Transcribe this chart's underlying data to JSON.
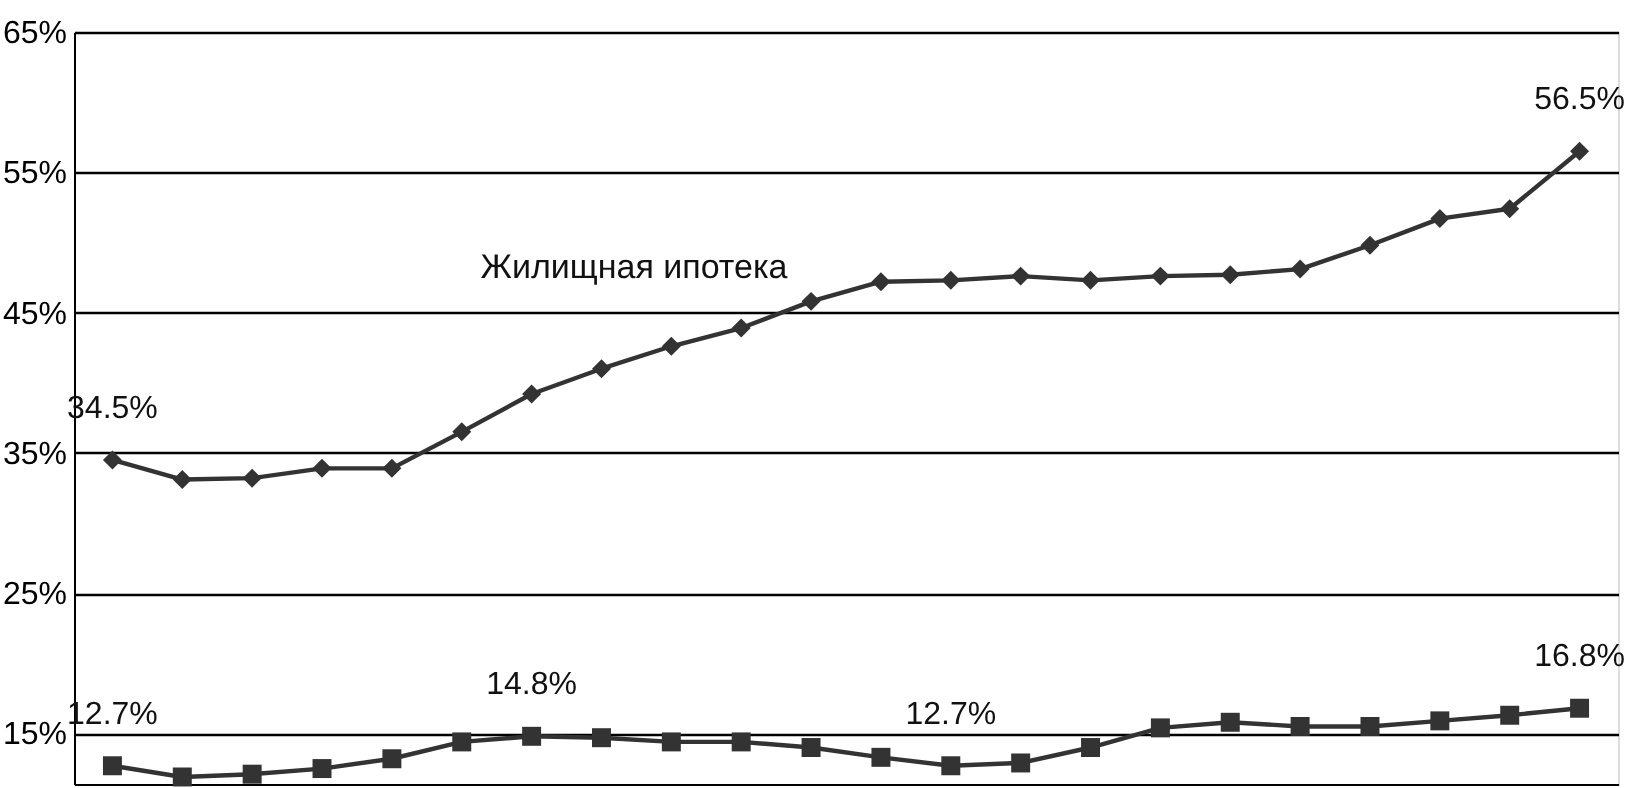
{
  "chart_data": {
    "type": "line",
    "categories": [
      null,
      null,
      null,
      null,
      null,
      null,
      null,
      null,
      null,
      null,
      null,
      null,
      null,
      null,
      null,
      null,
      null,
      null,
      null,
      null,
      null,
      null
    ],
    "series": [
      {
        "name": "Жилищная ипотека",
        "color": "#333333",
        "marker": "diamond",
        "values": [
          34.5,
          33.1,
          33.2,
          33.9,
          33.9,
          36.5,
          39.2,
          41.0,
          42.6,
          43.9,
          45.8,
          47.2,
          47.3,
          47.6,
          47.3,
          47.6,
          47.7,
          48.1,
          49.8,
          51.7,
          52.4,
          56.5
        ],
        "value_labels": [
          "34.5%",
          null,
          null,
          null,
          null,
          null,
          null,
          null,
          null,
          null,
          null,
          null,
          null,
          null,
          null,
          null,
          null,
          null,
          null,
          null,
          null,
          "56.5%"
        ]
      },
      {
        "color": "#333333",
        "marker": "square",
        "values": [
          12.7,
          11.9,
          12.1,
          12.5,
          13.2,
          14.4,
          14.8,
          14.7,
          14.4,
          14.4,
          14.0,
          13.3,
          12.7,
          12.9,
          14.0,
          15.4,
          15.8,
          15.5,
          15.5,
          15.9,
          16.3,
          16.8
        ],
        "value_labels": [
          "12.7%",
          null,
          null,
          null,
          null,
          null,
          "14.8%",
          null,
          null,
          null,
          null,
          null,
          "12.7%",
          null,
          null,
          null,
          null,
          null,
          null,
          null,
          null,
          "16.8%"
        ]
      }
    ],
    "ylim": [
      11.4,
      65
    ],
    "yticks": [
      {
        "value": 15,
        "label": "15%"
      },
      {
        "value": 25,
        "label": "25%"
      },
      {
        "value": 35,
        "label": "35%"
      },
      {
        "value": 45,
        "label": "45%"
      },
      {
        "value": 55,
        "label": "55%"
      },
      {
        "value": 65,
        "label": "65%"
      }
    ],
    "grid": "y",
    "tick_labels": "y",
    "line_style": "solid"
  }
}
